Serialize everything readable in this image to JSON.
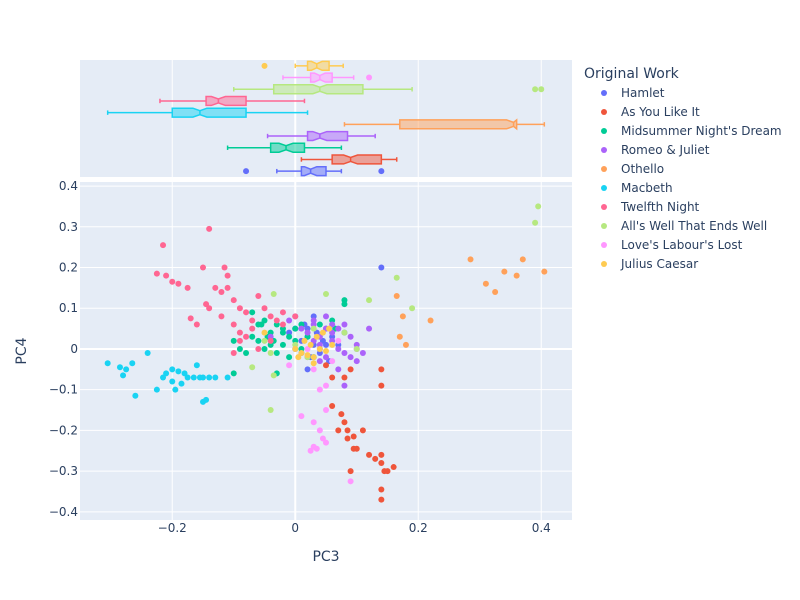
{
  "chart_data": {
    "type": "scatter",
    "xlabel": "PC3",
    "ylabel": "PC4",
    "xlim": [
      -0.35,
      0.45
    ],
    "ylim": [
      -0.42,
      0.41
    ],
    "x_ticks": [
      -0.2,
      0,
      0.2,
      0.4
    ],
    "x_tick_labels": [
      "−0.2",
      "0",
      "0.2",
      "0.4"
    ],
    "y_ticks": [
      -0.4,
      -0.3,
      -0.2,
      -0.1,
      0,
      0.1,
      0.2,
      0.3,
      0.4
    ],
    "y_tick_labels": [
      "−0.4",
      "−0.3",
      "−0.2",
      "−0.1",
      "0",
      "0.1",
      "0.2",
      "0.3",
      "0.4"
    ],
    "grid": true,
    "marginal_x": "notched box plot per series",
    "legend": {
      "title": "Original Work",
      "placement": "right"
    },
    "series": [
      {
        "name": "Hamlet",
        "color": "#636efa",
        "box": {
          "min": -0.03,
          "q1": 0.01,
          "median": 0.025,
          "q3": 0.05,
          "max": 0.075,
          "outliers": [
            -0.08,
            0.14
          ]
        },
        "points": [
          [
            0.02,
            0.03
          ],
          [
            0.03,
            0.01
          ],
          [
            0.04,
            -0.01
          ],
          [
            0.01,
            0.02
          ],
          [
            0.05,
            0.05
          ],
          [
            0.06,
            0.03
          ],
          [
            0.0,
            0.0
          ],
          [
            0.025,
            -0.02
          ],
          [
            0.035,
            0.04
          ],
          [
            0.015,
            0.06
          ],
          [
            0.045,
            0.02
          ],
          [
            0.055,
            -0.03
          ],
          [
            0.02,
            -0.05
          ],
          [
            0.07,
            0.01
          ],
          [
            -0.01,
            0.04
          ],
          [
            0.03,
            0.08
          ],
          [
            0.14,
            0.2
          ],
          [
            0.01,
            -0.01
          ],
          [
            0.04,
            0.0
          ],
          [
            0.05,
            0.01
          ],
          [
            0.0,
            0.05
          ],
          [
            0.08,
            0.04
          ],
          [
            0.02,
            0.05
          ]
        ]
      },
      {
        "name": "As You Like It",
        "color": "#EF553B",
        "box": {
          "min": 0.01,
          "q1": 0.06,
          "median": 0.09,
          "q3": 0.14,
          "max": 0.165,
          "outliers": []
        },
        "points": [
          [
            0.07,
            -0.2
          ],
          [
            0.085,
            -0.22
          ],
          [
            0.095,
            -0.245
          ],
          [
            0.075,
            -0.16
          ],
          [
            0.06,
            -0.14
          ],
          [
            0.08,
            -0.18
          ],
          [
            0.09,
            -0.3
          ],
          [
            0.12,
            -0.26
          ],
          [
            0.13,
            -0.27
          ],
          [
            0.14,
            -0.26
          ],
          [
            0.14,
            -0.28
          ],
          [
            0.145,
            -0.3
          ],
          [
            0.15,
            -0.3
          ],
          [
            0.16,
            -0.29
          ],
          [
            0.14,
            -0.345
          ],
          [
            0.14,
            -0.37
          ],
          [
            0.1,
            -0.245
          ],
          [
            0.095,
            -0.215
          ],
          [
            0.11,
            -0.2
          ],
          [
            0.14,
            -0.05
          ],
          [
            0.14,
            -0.09
          ],
          [
            0.08,
            -0.07
          ],
          [
            0.09,
            -0.05
          ],
          [
            0.05,
            -0.04
          ],
          [
            0.06,
            -0.07
          ],
          [
            0.085,
            -0.2
          ]
        ]
      },
      {
        "name": "Midsummer Night's Dream",
        "color": "#00cc96",
        "box": {
          "min": -0.11,
          "q1": -0.04,
          "median": -0.015,
          "q3": 0.015,
          "max": 0.075,
          "outliers": []
        },
        "points": [
          [
            -0.05,
            0.07
          ],
          [
            -0.03,
            0.06
          ],
          [
            -0.02,
            0.05
          ],
          [
            -0.01,
            0.03
          ],
          [
            0.0,
            0.02
          ],
          [
            0.01,
            0.0
          ],
          [
            -0.04,
            0.04
          ],
          [
            -0.06,
            0.02
          ],
          [
            -0.07,
            0.03
          ],
          [
            -0.1,
            0.02
          ],
          [
            -0.09,
            0.0
          ],
          [
            -0.08,
            -0.01
          ],
          [
            -0.05,
            0.0
          ],
          [
            -0.03,
            -0.01
          ],
          [
            -0.02,
            0.01
          ],
          [
            0.02,
            0.03
          ],
          [
            0.03,
            -0.02
          ],
          [
            -0.1,
            -0.06
          ],
          [
            -0.03,
            -0.06
          ],
          [
            -0.04,
            0.01
          ],
          [
            0.0,
            0.05
          ],
          [
            -0.07,
            0.09
          ],
          [
            0.06,
            0.07
          ],
          [
            0.065,
            0.05
          ],
          [
            0.08,
            0.11
          ],
          [
            0.08,
            0.12
          ],
          [
            -0.02,
            0.04
          ],
          [
            -0.06,
            0.06
          ],
          [
            -0.01,
            -0.02
          ],
          [
            0.04,
            0.06
          ],
          [
            -0.045,
            0.03
          ],
          [
            -0.035,
            0.02
          ],
          [
            -0.055,
            0.06
          ],
          [
            0.01,
            0.06
          ]
        ]
      },
      {
        "name": "Romeo & Juliet",
        "color": "#ab63fa",
        "box": {
          "min": -0.045,
          "q1": 0.02,
          "median": 0.04,
          "q3": 0.085,
          "max": 0.13,
          "outliers": []
        },
        "points": [
          [
            0.04,
            0.03
          ],
          [
            0.05,
            0.05
          ],
          [
            0.06,
            0.02
          ],
          [
            0.07,
            0.0
          ],
          [
            0.08,
            -0.01
          ],
          [
            0.03,
            0.06
          ],
          [
            0.02,
            0.04
          ],
          [
            0.09,
            0.03
          ],
          [
            0.1,
            0.01
          ],
          [
            0.05,
            -0.02
          ],
          [
            0.04,
            -0.03
          ],
          [
            0.07,
            0.05
          ],
          [
            0.08,
            0.06
          ],
          [
            0.12,
            0.05
          ],
          [
            0.01,
            0.05
          ],
          [
            0.0,
            0.08
          ],
          [
            -0.01,
            0.07
          ],
          [
            0.03,
            0.02
          ],
          [
            0.06,
            0.04
          ],
          [
            0.09,
            -0.02
          ],
          [
            0.1,
            0.0
          ],
          [
            0.02,
            -0.02
          ],
          [
            0.05,
            0.08
          ],
          [
            0.07,
            -0.05
          ],
          [
            0.08,
            -0.09
          ],
          [
            0.03,
            0.07
          ],
          [
            0.11,
            -0.01
          ],
          [
            0.1,
            -0.03
          ],
          [
            0.04,
            0.01
          ],
          [
            -0.04,
            0.03
          ],
          [
            0.06,
            0.06
          ]
        ]
      },
      {
        "name": "Othello",
        "color": "#FFA15A",
        "box": {
          "min": 0.08,
          "q1": 0.17,
          "median": 0.355,
          "q3": 0.36,
          "max": 0.405,
          "outliers": []
        },
        "points": [
          [
            0.285,
            0.22
          ],
          [
            0.31,
            0.16
          ],
          [
            0.325,
            0.14
          ],
          [
            0.34,
            0.19
          ],
          [
            0.36,
            0.18
          ],
          [
            0.37,
            0.22
          ],
          [
            0.405,
            0.19
          ],
          [
            0.165,
            0.13
          ],
          [
            0.175,
            0.08
          ],
          [
            0.18,
            0.01
          ],
          [
            0.17,
            0.03
          ],
          [
            0.22,
            0.07
          ]
        ]
      },
      {
        "name": "Macbeth",
        "color": "#19d3f3",
        "box": {
          "min": -0.305,
          "q1": -0.2,
          "median": -0.155,
          "q3": -0.08,
          "max": 0.02,
          "outliers": []
        },
        "points": [
          [
            -0.305,
            -0.035
          ],
          [
            -0.285,
            -0.045
          ],
          [
            -0.28,
            -0.065
          ],
          [
            -0.275,
            -0.05
          ],
          [
            -0.265,
            -0.035
          ],
          [
            -0.26,
            -0.115
          ],
          [
            -0.24,
            -0.01
          ],
          [
            -0.225,
            -0.1
          ],
          [
            -0.215,
            -0.07
          ],
          [
            -0.21,
            -0.06
          ],
          [
            -0.2,
            -0.08
          ],
          [
            -0.195,
            -0.1
          ],
          [
            -0.19,
            -0.055
          ],
          [
            -0.185,
            -0.085
          ],
          [
            -0.18,
            -0.06
          ],
          [
            -0.175,
            -0.07
          ],
          [
            -0.165,
            -0.07
          ],
          [
            -0.16,
            -0.04
          ],
          [
            -0.155,
            -0.07
          ],
          [
            -0.15,
            -0.07
          ],
          [
            -0.145,
            -0.125
          ],
          [
            -0.14,
            -0.07
          ],
          [
            -0.13,
            -0.07
          ],
          [
            -0.11,
            -0.07
          ],
          [
            -0.15,
            -0.13
          ],
          [
            -0.2,
            -0.05
          ]
        ]
      },
      {
        "name": "Twelfth Night",
        "color": "#FF6692",
        "box": {
          "min": -0.22,
          "q1": -0.145,
          "median": -0.125,
          "q3": -0.08,
          "max": 0.015,
          "outliers": []
        },
        "points": [
          [
            -0.215,
            0.255
          ],
          [
            -0.225,
            0.185
          ],
          [
            -0.21,
            0.18
          ],
          [
            -0.2,
            0.165
          ],
          [
            -0.19,
            0.16
          ],
          [
            -0.175,
            0.15
          ],
          [
            -0.15,
            0.2
          ],
          [
            -0.14,
            0.295
          ],
          [
            -0.115,
            0.2
          ],
          [
            -0.11,
            0.18
          ],
          [
            -0.13,
            0.15
          ],
          [
            -0.12,
            0.14
          ],
          [
            -0.11,
            0.15
          ],
          [
            -0.1,
            0.12
          ],
          [
            -0.09,
            0.1
          ],
          [
            -0.08,
            0.09
          ],
          [
            -0.07,
            0.07
          ],
          [
            -0.06,
            0.13
          ],
          [
            -0.05,
            0.1
          ],
          [
            -0.04,
            0.08
          ],
          [
            -0.03,
            0.07
          ],
          [
            -0.02,
            0.06
          ],
          [
            -0.145,
            0.11
          ],
          [
            -0.14,
            0.1
          ],
          [
            -0.12,
            0.08
          ],
          [
            -0.17,
            0.075
          ],
          [
            -0.16,
            0.06
          ],
          [
            -0.1,
            0.06
          ],
          [
            -0.09,
            0.04
          ],
          [
            -0.07,
            0.05
          ],
          [
            -0.09,
            0.02
          ],
          [
            -0.08,
            0.03
          ],
          [
            -0.1,
            -0.01
          ],
          [
            -0.06,
            0.0
          ],
          [
            -0.04,
            0.02
          ],
          [
            -0.02,
            0.09
          ],
          [
            0.0,
            0.08
          ]
        ]
      },
      {
        "name": "All's Well That Ends Well",
        "color": "#B6E880",
        "box": {
          "min": -0.1,
          "q1": -0.035,
          "median": 0.04,
          "q3": 0.11,
          "max": 0.19,
          "outliers": [
            0.39,
            0.4
          ]
        },
        "points": [
          [
            0.395,
            0.35
          ],
          [
            0.39,
            0.31
          ],
          [
            0.165,
            0.175
          ],
          [
            0.19,
            0.1
          ],
          [
            0.12,
            0.12
          ],
          [
            0.05,
            0.135
          ],
          [
            -0.035,
            0.135
          ],
          [
            -0.04,
            -0.15
          ],
          [
            -0.035,
            -0.065
          ],
          [
            -0.07,
            -0.045
          ],
          [
            -0.04,
            -0.01
          ],
          [
            0.1,
            0.0
          ],
          [
            0.02,
            -0.02
          ],
          [
            -0.05,
            0.02
          ],
          [
            0.08,
            0.04
          ],
          [
            0.0,
            0.01
          ],
          [
            0.03,
            0.05
          ]
        ]
      },
      {
        "name": "Love's Labour's Lost",
        "color": "#FF97FF",
        "box": {
          "min": -0.02,
          "q1": 0.025,
          "median": 0.04,
          "q3": 0.06,
          "max": 0.095,
          "outliers": [
            0.12
          ]
        },
        "points": [
          [
            0.03,
            -0.18
          ],
          [
            0.04,
            -0.2
          ],
          [
            0.045,
            -0.22
          ],
          [
            0.05,
            -0.23
          ],
          [
            0.03,
            -0.24
          ],
          [
            0.025,
            -0.25
          ],
          [
            0.035,
            -0.245
          ],
          [
            0.09,
            -0.325
          ],
          [
            0.05,
            -0.15
          ],
          [
            0.01,
            -0.165
          ],
          [
            0.05,
            -0.09
          ],
          [
            0.03,
            -0.05
          ],
          [
            0.06,
            -0.03
          ],
          [
            -0.01,
            -0.04
          ],
          [
            0.04,
            -0.1
          ],
          [
            0.02,
            0.0
          ],
          [
            0.07,
            0.02
          ]
        ]
      },
      {
        "name": "Julius Caesar",
        "color": "#FECB52",
        "box": {
          "min": 0.0,
          "q1": 0.02,
          "median": 0.035,
          "q3": 0.055,
          "max": 0.078,
          "outliers": [
            -0.05
          ]
        },
        "points": [
          [
            0.0,
            0.0
          ],
          [
            0.01,
            -0.01
          ],
          [
            0.02,
            -0.015
          ],
          [
            0.03,
            -0.02
          ],
          [
            0.04,
            0.0
          ],
          [
            0.05,
            -0.005
          ],
          [
            0.025,
            0.01
          ],
          [
            0.015,
            0.02
          ],
          [
            0.035,
            0.03
          ],
          [
            0.045,
            0.04
          ],
          [
            0.055,
            0.05
          ],
          [
            0.03,
            -0.035
          ],
          [
            0.06,
            0.01
          ],
          [
            -0.05,
            0.04
          ],
          [
            0.005,
            -0.02
          ]
        ]
      }
    ]
  }
}
